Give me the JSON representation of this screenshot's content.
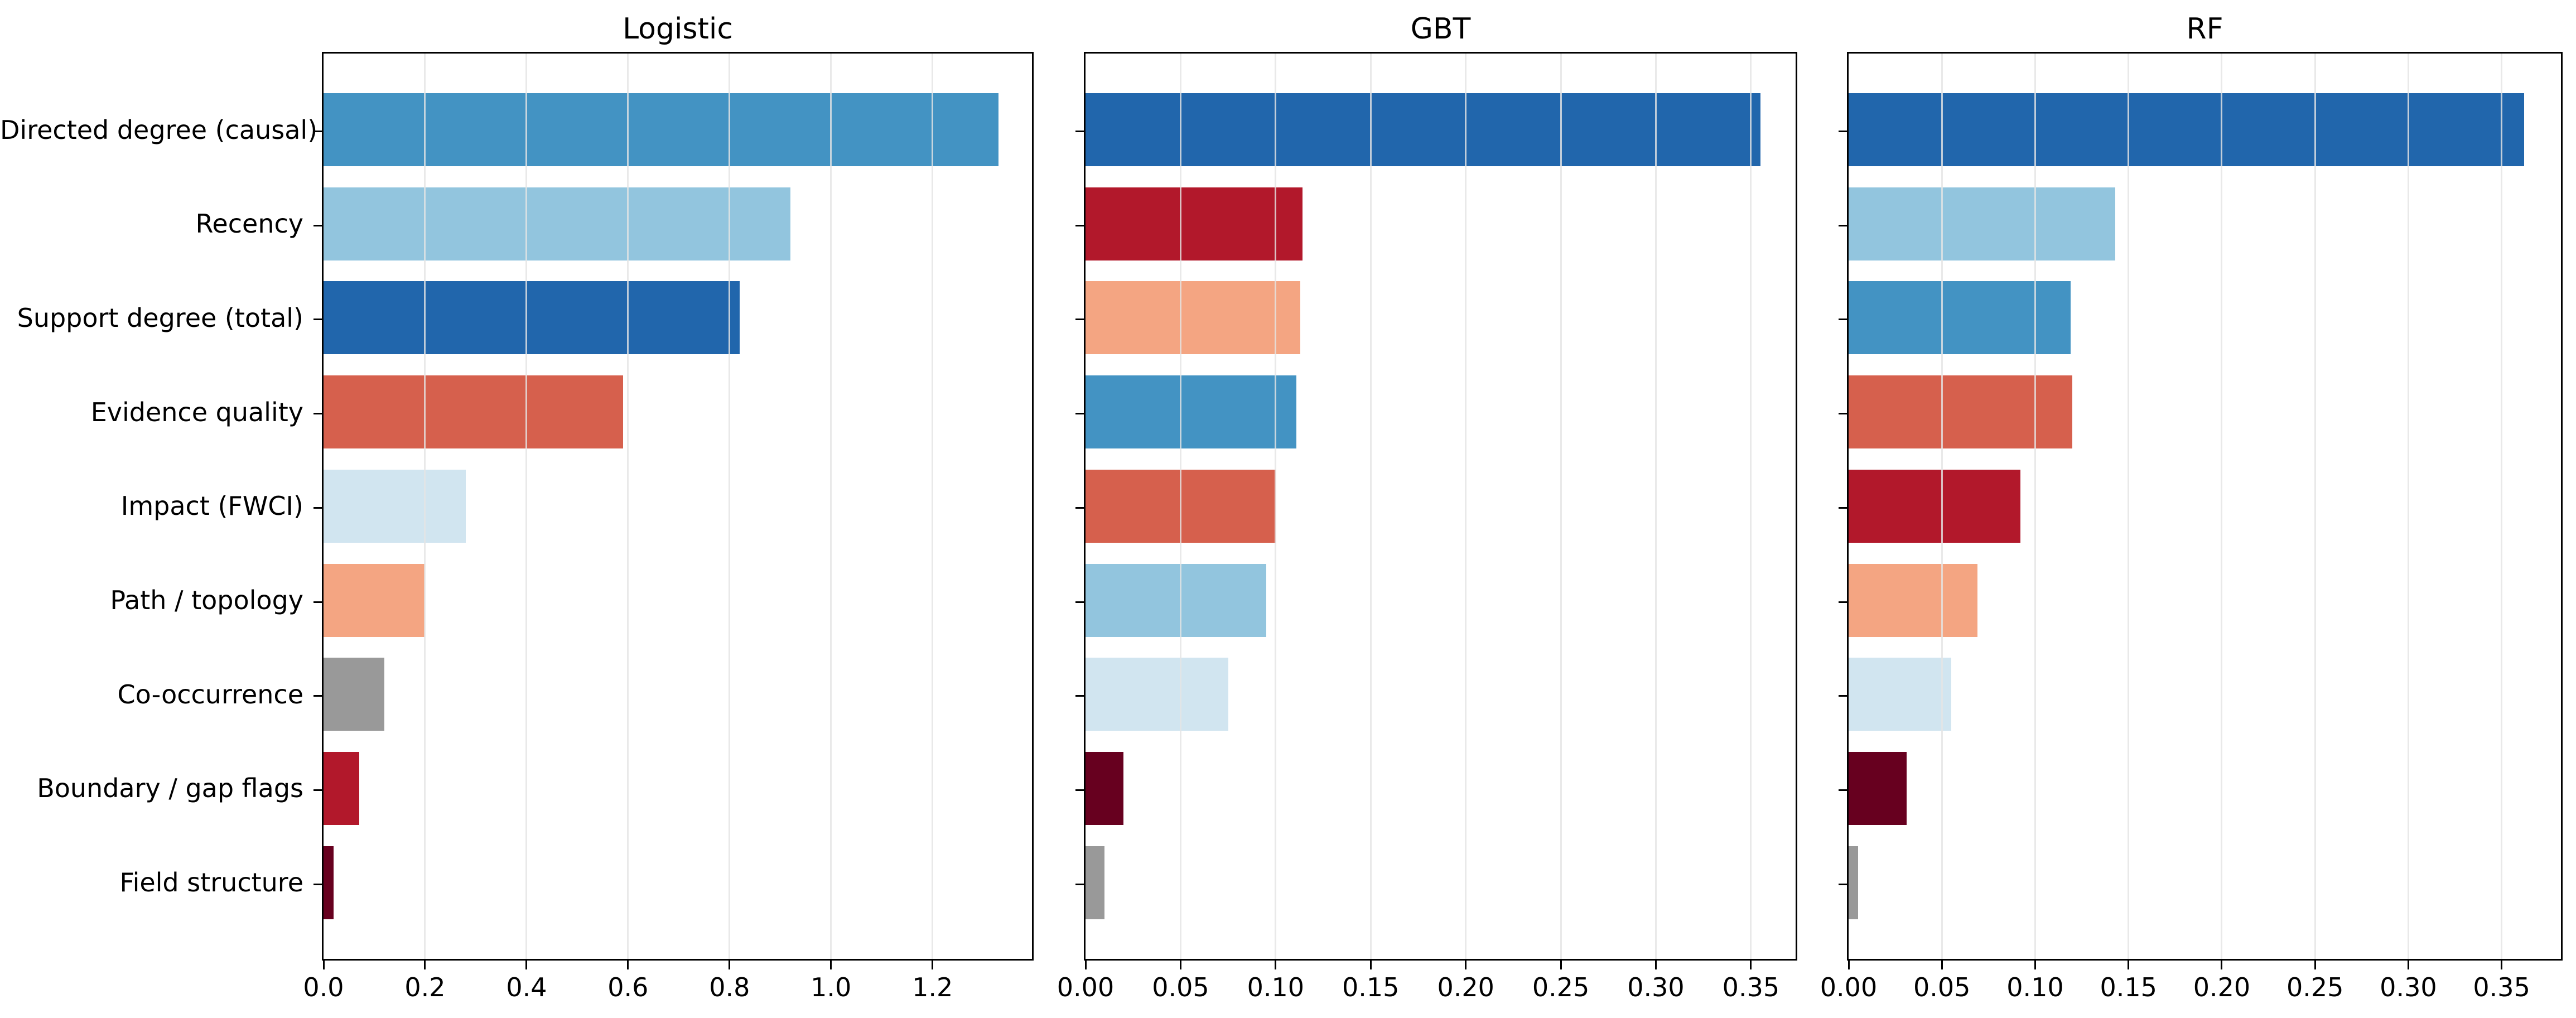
{
  "figure": {
    "background": "#ffffff",
    "text_color": "#000000",
    "grid_color": "#e4e4e4"
  },
  "categories": [
    "Directed degree (causal)",
    "Recency",
    "Support degree (total)",
    "Evidence quality",
    "Impact (FWCI)",
    "Path / topology",
    "Co-occurrence",
    "Boundary / gap flags",
    "Field structure"
  ],
  "feature_colors": {
    "Directed degree (causal)": "#4393c3",
    "Recency": "#92c5de",
    "Support degree (total)": "#2166ac",
    "Evidence quality": "#d6604d",
    "Impact (FWCI)": "#d1e5f0",
    "Path / topology": "#f4a582",
    "Co-occurrence": "#999999",
    "Boundary / gap flags": "#b2182b",
    "Field structure": "#67001f"
  },
  "chart_data": [
    {
      "type": "bar",
      "orientation": "horizontal",
      "title": "Logistic",
      "xlim": [
        0,
        1.396
      ],
      "grid": "vertical",
      "xticks": [
        {
          "v": 0.0,
          "label": "0.0"
        },
        {
          "v": 0.2,
          "label": "0.2"
        },
        {
          "v": 0.4,
          "label": "0.4"
        },
        {
          "v": 0.6,
          "label": "0.6"
        },
        {
          "v": 0.8,
          "label": "0.8"
        },
        {
          "v": 1.0,
          "label": "1.0"
        },
        {
          "v": 1.2,
          "label": "1.2"
        }
      ],
      "bars": [
        {
          "label": "Directed degree (causal)",
          "value": 1.33,
          "color": "#4393c3"
        },
        {
          "label": "Recency",
          "value": 0.92,
          "color": "#92c5de"
        },
        {
          "label": "Support degree (total)",
          "value": 0.82,
          "color": "#2166ac"
        },
        {
          "label": "Evidence quality",
          "value": 0.59,
          "color": "#d6604d"
        },
        {
          "label": "Impact (FWCI)",
          "value": 0.28,
          "color": "#d1e5f0"
        },
        {
          "label": "Path / topology",
          "value": 0.2,
          "color": "#f4a582"
        },
        {
          "label": "Co-occurrence",
          "value": 0.12,
          "color": "#999999"
        },
        {
          "label": "Boundary / gap flags",
          "value": 0.07,
          "color": "#b2182b"
        },
        {
          "label": "Field structure",
          "value": 0.02,
          "color": "#67001f"
        }
      ]
    },
    {
      "type": "bar",
      "orientation": "horizontal",
      "title": "GBT",
      "xlim": [
        0,
        0.3735
      ],
      "grid": "vertical",
      "xticks": [
        {
          "v": 0.0,
          "label": "0.00"
        },
        {
          "v": 0.05,
          "label": "0.05"
        },
        {
          "v": 0.1,
          "label": "0.10"
        },
        {
          "v": 0.15,
          "label": "0.15"
        },
        {
          "v": 0.2,
          "label": "0.20"
        },
        {
          "v": 0.25,
          "label": "0.25"
        },
        {
          "v": 0.3,
          "label": "0.30"
        },
        {
          "v": 0.35,
          "label": "0.35"
        }
      ],
      "bars": [
        {
          "label": "Support degree (total)",
          "value": 0.355,
          "color": "#2166ac"
        },
        {
          "label": "Boundary / gap flags",
          "value": 0.114,
          "color": "#b2182b"
        },
        {
          "label": "Path / topology",
          "value": 0.113,
          "color": "#f4a582"
        },
        {
          "label": "Directed degree (causal)",
          "value": 0.111,
          "color": "#4393c3"
        },
        {
          "label": "Evidence quality",
          "value": 0.1,
          "color": "#d6604d"
        },
        {
          "label": "Recency",
          "value": 0.095,
          "color": "#92c5de"
        },
        {
          "label": "Impact (FWCI)",
          "value": 0.075,
          "color": "#d1e5f0"
        },
        {
          "label": "Field structure",
          "value": 0.02,
          "color": "#67001f"
        },
        {
          "label": "Co-occurrence",
          "value": 0.01,
          "color": "#999999"
        }
      ]
    },
    {
      "type": "bar",
      "orientation": "horizontal",
      "title": "RF",
      "xlim": [
        0,
        0.3818
      ],
      "grid": "vertical",
      "xticks": [
        {
          "v": 0.0,
          "label": "0.00"
        },
        {
          "v": 0.05,
          "label": "0.05"
        },
        {
          "v": 0.1,
          "label": "0.10"
        },
        {
          "v": 0.15,
          "label": "0.15"
        },
        {
          "v": 0.2,
          "label": "0.20"
        },
        {
          "v": 0.25,
          "label": "0.25"
        },
        {
          "v": 0.3,
          "label": "0.30"
        },
        {
          "v": 0.35,
          "label": "0.35"
        }
      ],
      "bars": [
        {
          "label": "Support degree (total)",
          "value": 0.362,
          "color": "#2166ac"
        },
        {
          "label": "Recency",
          "value": 0.143,
          "color": "#92c5de"
        },
        {
          "label": "Directed degree (causal)",
          "value": 0.119,
          "color": "#4393c3"
        },
        {
          "label": "Evidence quality",
          "value": 0.12,
          "color": "#d6604d"
        },
        {
          "label": "Boundary / gap flags",
          "value": 0.092,
          "color": "#b2182b"
        },
        {
          "label": "Path / topology",
          "value": 0.069,
          "color": "#f4a582"
        },
        {
          "label": "Impact (FWCI)",
          "value": 0.055,
          "color": "#d1e5f0"
        },
        {
          "label": "Field structure",
          "value": 0.031,
          "color": "#67001f"
        },
        {
          "label": "Co-occurrence",
          "value": 0.005,
          "color": "#999999"
        }
      ]
    }
  ]
}
